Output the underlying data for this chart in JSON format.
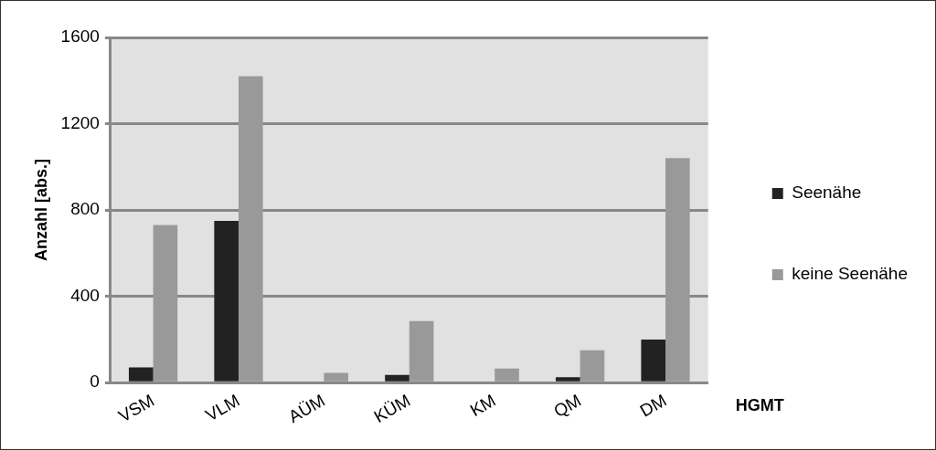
{
  "chart_data": {
    "type": "bar",
    "xlabel": "HGMT",
    "ylabel": "Anzahl [abs.]",
    "categories": [
      "VSM",
      "VLM",
      "AÜM",
      "KÜM",
      "KM",
      "QM",
      "DM"
    ],
    "series": [
      {
        "name": "Seenähe",
        "color": "#222222",
        "values": [
          70,
          750,
          0,
          35,
          0,
          25,
          200
        ]
      },
      {
        "name": "keine Seenähe",
        "color": "#999999",
        "values": [
          730,
          1420,
          45,
          285,
          65,
          150,
          1040
        ]
      }
    ],
    "ylim": [
      0,
      1600
    ],
    "yticks": [
      0,
      400,
      800,
      1200,
      1600
    ],
    "grid": "y",
    "legend": "right"
  }
}
